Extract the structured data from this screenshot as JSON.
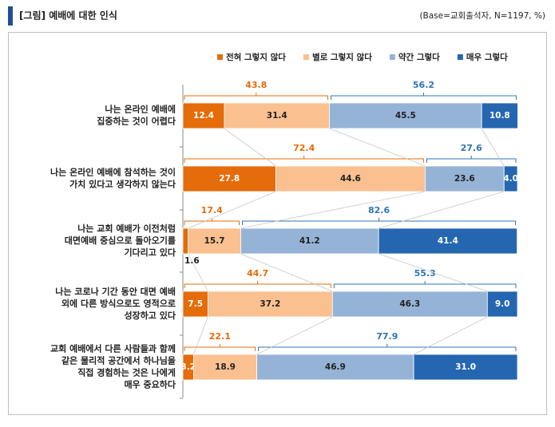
{
  "chart_data": {
    "type": "stacked_bar_horizontal",
    "title": "[그림] 예배에 대한 인식",
    "note": "(Base=교회출석자, N=1197, %)",
    "categories": [
      "나는 온라인 예배에\n집중하는 것이 어렵다",
      "나는 온라인 예배에 참석하는 것이\n가치 있다고 생각하지 않는다",
      "나는 교회 예배가 이전처럼\n대면예배 중심으로 돌아오기를\n기다리고 있다",
      "나는 코로나 기간 동안 대면 예배\n외에 다른 방식으로도 영적으로\n성장하고 있다",
      "교회 예배에서 다른 사람들과 함께\n같은 물리적 공간에서 하나님을\n직접 경험하는 것은 나에게\n매우 중요하다"
    ],
    "xlim": [
      0,
      100
    ],
    "series": [
      {
        "name": "전혀 그렇지 않다",
        "color": "#e46c0a",
        "text_color": "#ffffff",
        "values": [
          12.4,
          27.8,
          1.6,
          7.5,
          3.2
        ],
        "value_labels": [
          "12.4",
          "27.8",
          "1.6",
          "7.5",
          "3.2"
        ]
      },
      {
        "name": "별로 그렇지 않다",
        "color": "#fac090",
        "text_color": "#222222",
        "values": [
          31.4,
          44.6,
          15.7,
          37.2,
          18.9
        ],
        "value_labels": [
          "31.4",
          "44.6",
          "15.7",
          "37.2",
          "18.9"
        ]
      },
      {
        "name": "약간 그렇다",
        "color": "#95b3d7",
        "text_color": "#222222",
        "values": [
          45.5,
          23.6,
          41.2,
          46.3,
          46.9
        ],
        "value_labels": [
          "45.5",
          "23.6",
          "41.2",
          "46.3",
          "46.9"
        ]
      },
      {
        "name": "매우 그렇다",
        "color": "#2566b0",
        "text_color": "#ffffff",
        "values": [
          10.8,
          4.0,
          41.4,
          9.0,
          31.0
        ],
        "value_labels": [
          "10.8",
          "4.0",
          "41.4",
          "9.0",
          "31.0"
        ]
      }
    ],
    "totals": {
      "negative": {
        "color": "#e46c0a",
        "values": [
          43.8,
          72.4,
          17.4,
          44.7,
          22.1
        ]
      },
      "positive": {
        "color": "#2e75b6",
        "values": [
          56.2,
          27.6,
          82.6,
          55.3,
          77.9
        ]
      }
    }
  }
}
